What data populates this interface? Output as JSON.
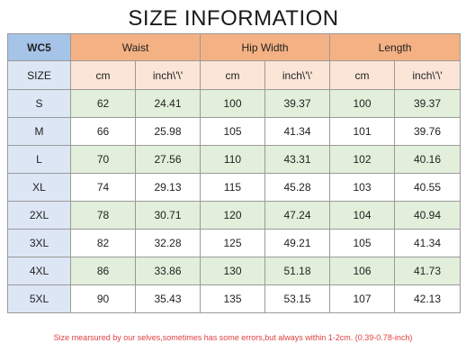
{
  "title": "SIZE INFORMATION",
  "header": {
    "code": "WC5",
    "groups": [
      "Waist",
      "Hip Width",
      "Length"
    ],
    "size_label": "SIZE",
    "units": [
      "cm",
      "inch\\'\\'",
      "cm",
      "inch\\'\\'",
      "cm",
      "inch\\'\\'"
    ]
  },
  "rows": [
    {
      "size": "S",
      "values": [
        "62",
        "24.41",
        "100",
        "39.37",
        "100",
        "39.37"
      ]
    },
    {
      "size": "M",
      "values": [
        "66",
        "25.98",
        "105",
        "41.34",
        "101",
        "39.76"
      ]
    },
    {
      "size": "L",
      "values": [
        "70",
        "27.56",
        "110",
        "43.31",
        "102",
        "40.16"
      ]
    },
    {
      "size": "XL",
      "values": [
        "74",
        "29.13",
        "115",
        "45.28",
        "103",
        "40.55"
      ]
    },
    {
      "size": "2XL",
      "values": [
        "78",
        "30.71",
        "120",
        "47.24",
        "104",
        "40.94"
      ]
    },
    {
      "size": "3XL",
      "values": [
        "82",
        "32.28",
        "125",
        "49.21",
        "105",
        "41.34"
      ]
    },
    {
      "size": "4XL",
      "values": [
        "86",
        "33.86",
        "130",
        "51.18",
        "106",
        "41.73"
      ]
    },
    {
      "size": "5XL",
      "values": [
        "90",
        "35.43",
        "135",
        "53.15",
        "107",
        "42.13"
      ]
    }
  ],
  "note": "Size mearsured by our selves,sometimes has some errors,but always within 1-2cm.  (0.39-0.78-inch)",
  "colors": {
    "code_bg": "#a6c3e8",
    "group_bg": "#f4b183",
    "unit_bg": "#fbe5d6",
    "size_bg": "#dde6f5",
    "alt_row_bg": "#e2efda",
    "inch_text": "#e02020"
  }
}
